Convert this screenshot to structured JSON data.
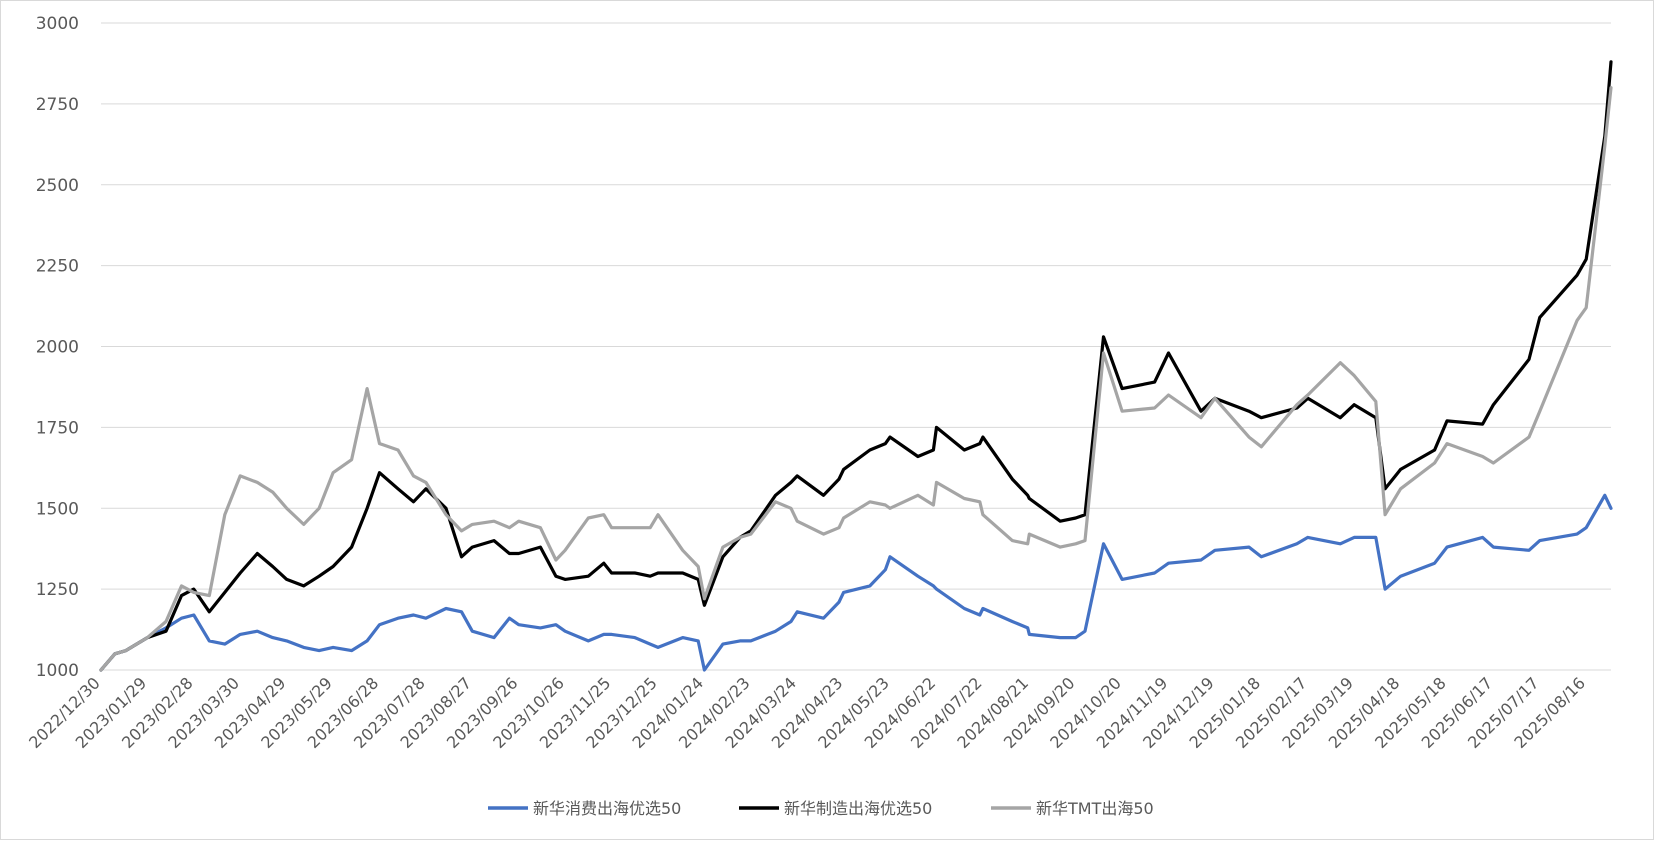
{
  "chart_data": {
    "type": "line",
    "title": "",
    "xlabel": "",
    "ylabel": "",
    "ylim": [
      1000,
      3000
    ],
    "yticks": [
      1000,
      1250,
      1500,
      1750,
      2000,
      2250,
      2500,
      2750,
      3000
    ],
    "grid": "horizontal",
    "legend_position": "bottom",
    "x_tick_labels": [
      "2022/12/30",
      "2023/01/29",
      "2023/02/28",
      "2023/03/30",
      "2023/04/29",
      "2023/05/29",
      "2023/06/28",
      "2023/07/28",
      "2023/08/27",
      "2023/09/26",
      "2023/10/26",
      "2023/11/25",
      "2023/12/25",
      "2024/01/24",
      "2024/02/23",
      "2024/03/24",
      "2024/04/23",
      "2024/05/23",
      "2024/06/22",
      "2024/07/22",
      "2024/08/21",
      "2024/09/20",
      "2024/10/20",
      "2024/11/19",
      "2024/12/19",
      "2025/01/18",
      "2025/02/17",
      "2025/03/19",
      "2025/04/18",
      "2025/05/18",
      "2025/06/17",
      "2025/07/17",
      "2025/08/16"
    ],
    "series": [
      {
        "name": "新华消费出海优选50",
        "color": "#4472C4",
        "x": [
          "2022/12/30",
          "2023/01/08",
          "2023/01/15",
          "2023/01/29",
          "2023/02/10",
          "2023/02/20",
          "2023/02/28",
          "2023/03/10",
          "2023/03/20",
          "2023/03/30",
          "2023/04/10",
          "2023/04/20",
          "2023/04/29",
          "2023/05/10",
          "2023/05/20",
          "2023/05/29",
          "2023/06/10",
          "2023/06/20",
          "2023/06/28",
          "2023/07/10",
          "2023/07/20",
          "2023/07/28",
          "2023/08/10",
          "2023/08/20",
          "2023/08/27",
          "2023/09/10",
          "2023/09/20",
          "2023/09/26",
          "2023/10/10",
          "2023/10/20",
          "2023/10/26",
          "2023/11/10",
          "2023/11/20",
          "2023/11/25",
          "2023/12/10",
          "2023/12/20",
          "2023/12/25",
          "2024/01/10",
          "2024/01/20",
          "2024/01/24",
          "2024/02/05",
          "2024/02/16",
          "2024/02/23",
          "2024/03/10",
          "2024/03/20",
          "2024/03/24",
          "2024/04/10",
          "2024/04/20",
          "2024/04/23",
          "2024/05/10",
          "2024/05/20",
          "2024/05/23",
          "2024/06/10",
          "2024/06/20",
          "2024/06/22",
          "2024/07/10",
          "2024/07/20",
          "2024/07/22",
          "2024/08/10",
          "2024/08/20",
          "2024/08/21",
          "2024/09/10",
          "2024/09/20",
          "2024/09/26",
          "2024/10/08",
          "2024/10/20",
          "2024/11/10",
          "2024/11/19",
          "2024/12/10",
          "2024/12/19",
          "2025/01/10",
          "2025/01/18",
          "2025/02/10",
          "2025/02/17",
          "2025/03/10",
          "2025/03/19",
          "2025/04/02",
          "2025/04/08",
          "2025/04/18",
          "2025/05/10",
          "2025/05/18",
          "2025/06/10",
          "2025/06/17",
          "2025/07/10",
          "2025/07/17",
          "2025/08/10",
          "2025/08/16",
          "2025/08/28",
          "2025/09/01"
        ],
        "values": [
          1000,
          1050,
          1060,
          1100,
          1130,
          1160,
          1170,
          1090,
          1080,
          1110,
          1120,
          1100,
          1090,
          1070,
          1060,
          1070,
          1060,
          1090,
          1140,
          1160,
          1170,
          1160,
          1190,
          1180,
          1120,
          1100,
          1160,
          1140,
          1130,
          1140,
          1120,
          1090,
          1110,
          1110,
          1100,
          1080,
          1070,
          1100,
          1090,
          1000,
          1080,
          1090,
          1090,
          1120,
          1150,
          1180,
          1160,
          1210,
          1240,
          1260,
          1310,
          1350,
          1290,
          1260,
          1250,
          1190,
          1170,
          1190,
          1150,
          1130,
          1110,
          1100,
          1100,
          1120,
          1390,
          1280,
          1300,
          1330,
          1340,
          1370,
          1380,
          1350,
          1390,
          1410,
          1390,
          1410,
          1410,
          1250,
          1290,
          1330,
          1380,
          1410,
          1380,
          1370,
          1400,
          1420,
          1440,
          1540,
          1500
        ]
      },
      {
        "name": "新华制造出海优选50",
        "color": "#000000",
        "x": [
          "2022/12/30",
          "2023/01/08",
          "2023/01/15",
          "2023/01/29",
          "2023/02/10",
          "2023/02/20",
          "2023/02/28",
          "2023/03/10",
          "2023/03/20",
          "2023/03/30",
          "2023/04/10",
          "2023/04/20",
          "2023/04/29",
          "2023/05/10",
          "2023/05/20",
          "2023/05/29",
          "2023/06/10",
          "2023/06/20",
          "2023/06/28",
          "2023/07/10",
          "2023/07/20",
          "2023/07/28",
          "2023/08/10",
          "2023/08/20",
          "2023/08/27",
          "2023/09/10",
          "2023/09/20",
          "2023/09/26",
          "2023/10/10",
          "2023/10/20",
          "2023/10/26",
          "2023/11/10",
          "2023/11/20",
          "2023/11/25",
          "2023/12/10",
          "2023/12/20",
          "2023/12/25",
          "2024/01/10",
          "2024/01/20",
          "2024/01/24",
          "2024/02/05",
          "2024/02/16",
          "2024/02/23",
          "2024/03/10",
          "2024/03/20",
          "2024/03/24",
          "2024/04/10",
          "2024/04/20",
          "2024/04/23",
          "2024/05/10",
          "2024/05/20",
          "2024/05/23",
          "2024/06/10",
          "2024/06/20",
          "2024/06/22",
          "2024/07/10",
          "2024/07/20",
          "2024/07/22",
          "2024/08/10",
          "2024/08/20",
          "2024/08/21",
          "2024/09/10",
          "2024/09/20",
          "2024/09/26",
          "2024/10/08",
          "2024/10/20",
          "2024/11/10",
          "2024/11/19",
          "2024/12/10",
          "2024/12/19",
          "2025/01/10",
          "2025/01/18",
          "2025/02/10",
          "2025/02/17",
          "2025/03/10",
          "2025/03/19",
          "2025/04/02",
          "2025/04/08",
          "2025/04/18",
          "2025/05/10",
          "2025/05/18",
          "2025/06/10",
          "2025/06/17",
          "2025/07/10",
          "2025/07/17",
          "2025/08/10",
          "2025/08/16",
          "2025/08/28",
          "2025/09/01"
        ],
        "values": [
          1000,
          1050,
          1060,
          1100,
          1120,
          1230,
          1250,
          1180,
          1240,
          1300,
          1360,
          1320,
          1280,
          1260,
          1290,
          1320,
          1380,
          1500,
          1610,
          1560,
          1520,
          1560,
          1500,
          1350,
          1380,
          1400,
          1360,
          1360,
          1380,
          1290,
          1280,
          1290,
          1330,
          1300,
          1300,
          1290,
          1300,
          1300,
          1280,
          1200,
          1350,
          1410,
          1430,
          1540,
          1580,
          1600,
          1540,
          1590,
          1620,
          1680,
          1700,
          1720,
          1660,
          1680,
          1750,
          1680,
          1700,
          1720,
          1590,
          1540,
          1530,
          1460,
          1470,
          1480,
          2030,
          1870,
          1890,
          1980,
          1800,
          1840,
          1800,
          1780,
          1810,
          1840,
          1780,
          1820,
          1780,
          1560,
          1620,
          1680,
          1770,
          1760,
          1820,
          1960,
          2090,
          2220,
          2270,
          2650,
          2880
        ]
      },
      {
        "name": "新华TMT出海50",
        "color": "#A5A5A5",
        "x": [
          "2022/12/30",
          "2023/01/08",
          "2023/01/15",
          "2023/01/29",
          "2023/02/10",
          "2023/02/20",
          "2023/02/28",
          "2023/03/10",
          "2023/03/20",
          "2023/03/30",
          "2023/04/10",
          "2023/04/20",
          "2023/04/29",
          "2023/05/10",
          "2023/05/20",
          "2023/05/29",
          "2023/06/10",
          "2023/06/20",
          "2023/06/28",
          "2023/07/10",
          "2023/07/20",
          "2023/07/28",
          "2023/08/10",
          "2023/08/20",
          "2023/08/27",
          "2023/09/10",
          "2023/09/20",
          "2023/09/26",
          "2023/10/10",
          "2023/10/20",
          "2023/10/26",
          "2023/11/10",
          "2023/11/20",
          "2023/11/25",
          "2023/12/10",
          "2023/12/20",
          "2023/12/25",
          "2024/01/10",
          "2024/01/20",
          "2024/01/24",
          "2024/02/05",
          "2024/02/16",
          "2024/02/23",
          "2024/03/10",
          "2024/03/20",
          "2024/03/24",
          "2024/04/10",
          "2024/04/20",
          "2024/04/23",
          "2024/05/10",
          "2024/05/20",
          "2024/05/23",
          "2024/06/10",
          "2024/06/20",
          "2024/06/22",
          "2024/07/10",
          "2024/07/20",
          "2024/07/22",
          "2024/08/10",
          "2024/08/20",
          "2024/08/21",
          "2024/09/10",
          "2024/09/20",
          "2024/09/26",
          "2024/10/08",
          "2024/10/20",
          "2024/11/10",
          "2024/11/19",
          "2024/12/10",
          "2024/12/19",
          "2025/01/10",
          "2025/01/18",
          "2025/02/10",
          "2025/02/17",
          "2025/03/10",
          "2025/03/19",
          "2025/04/02",
          "2025/04/08",
          "2025/04/18",
          "2025/05/10",
          "2025/05/18",
          "2025/06/10",
          "2025/06/17",
          "2025/07/10",
          "2025/07/17",
          "2025/08/10",
          "2025/08/16",
          "2025/08/28",
          "2025/09/01"
        ],
        "values": [
          1000,
          1050,
          1060,
          1100,
          1150,
          1260,
          1240,
          1230,
          1480,
          1600,
          1580,
          1550,
          1500,
          1450,
          1500,
          1610,
          1650,
          1870,
          1700,
          1680,
          1600,
          1580,
          1480,
          1430,
          1450,
          1460,
          1440,
          1460,
          1440,
          1340,
          1370,
          1470,
          1480,
          1440,
          1440,
          1440,
          1480,
          1370,
          1320,
          1220,
          1380,
          1410,
          1420,
          1520,
          1500,
          1460,
          1420,
          1440,
          1470,
          1520,
          1510,
          1500,
          1540,
          1510,
          1580,
          1530,
          1520,
          1480,
          1400,
          1390,
          1420,
          1380,
          1390,
          1400,
          1980,
          1800,
          1810,
          1850,
          1780,
          1840,
          1720,
          1690,
          1820,
          1850,
          1950,
          1910,
          1830,
          1480,
          1560,
          1640,
          1700,
          1660,
          1640,
          1720,
          1800,
          2080,
          2120,
          2620,
          2800
        ]
      }
    ]
  }
}
